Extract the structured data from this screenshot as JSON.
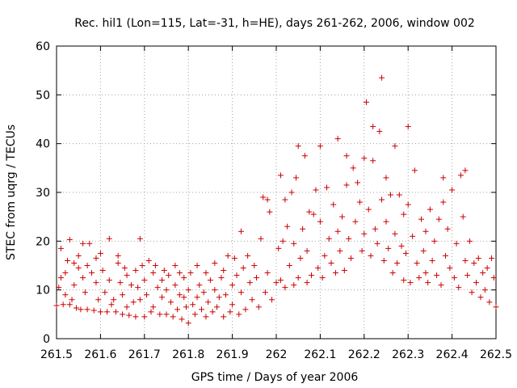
{
  "chart_data": {
    "type": "scatter",
    "title": "Rec. hil1 (Lon=115, Lat=-31, h=HE), days 261-262, 2006, window 002",
    "xlabel": "GPS time / Days of year 2006",
    "ylabel": "STEC from uqrg / TECUs",
    "xlim": [
      261.5,
      262.5
    ],
    "ylim": [
      0,
      60
    ],
    "x_ticks": [
      "261.5",
      "261.6",
      "261.7",
      "261.8",
      "261.9",
      "262",
      "262.1",
      "262.2",
      "262.3",
      "262.4",
      "262.5"
    ],
    "y_ticks": [
      "0",
      "10",
      "20",
      "30",
      "40",
      "50",
      "60"
    ],
    "grid": true,
    "marker": "plus",
    "marker_color": "#cc0000",
    "series": [
      {
        "name": "STEC",
        "points": [
          [
            261.5,
            6.8
          ],
          [
            261.505,
            10.5
          ],
          [
            261.51,
            12.5
          ],
          [
            261.51,
            18.5
          ],
          [
            261.515,
            7.0
          ],
          [
            261.52,
            9.0
          ],
          [
            261.52,
            13.5
          ],
          [
            261.525,
            16.0
          ],
          [
            261.53,
            20.3
          ],
          [
            261.53,
            7.0
          ],
          [
            261.535,
            8.0
          ],
          [
            261.54,
            11.0
          ],
          [
            261.54,
            15.5
          ],
          [
            261.545,
            6.3
          ],
          [
            261.55,
            14.5
          ],
          [
            261.55,
            17.0
          ],
          [
            261.555,
            6.0
          ],
          [
            261.56,
            19.5
          ],
          [
            261.56,
            12.5
          ],
          [
            261.565,
            9.5
          ],
          [
            261.57,
            6.0
          ],
          [
            261.57,
            15.0
          ],
          [
            261.575,
            19.5
          ],
          [
            261.58,
            13.5
          ],
          [
            261.585,
            5.8
          ],
          [
            261.59,
            11.5
          ],
          [
            261.59,
            16.5
          ],
          [
            261.595,
            8.0
          ],
          [
            261.6,
            5.5
          ],
          [
            261.6,
            17.5
          ],
          [
            261.605,
            14.0
          ],
          [
            261.61,
            9.5
          ],
          [
            261.615,
            5.5
          ],
          [
            261.62,
            20.5
          ],
          [
            261.62,
            12.0
          ],
          [
            261.625,
            7.0
          ],
          [
            261.63,
            8.0
          ],
          [
            261.635,
            5.5
          ],
          [
            261.64,
            15.5
          ],
          [
            261.64,
            17.0
          ],
          [
            261.645,
            11.5
          ],
          [
            261.65,
            5.0
          ],
          [
            261.65,
            9.0
          ],
          [
            261.655,
            14.5
          ],
          [
            261.66,
            6.5
          ],
          [
            261.66,
            13.0
          ],
          [
            261.665,
            4.8
          ],
          [
            261.67,
            11.0
          ],
          [
            261.675,
            7.5
          ],
          [
            261.68,
            14.0
          ],
          [
            261.68,
            4.5
          ],
          [
            261.685,
            10.5
          ],
          [
            261.69,
            8.0
          ],
          [
            261.69,
            20.5
          ],
          [
            261.695,
            15.0
          ],
          [
            261.7,
            4.5
          ],
          [
            261.7,
            12.0
          ],
          [
            261.705,
            9.0
          ],
          [
            261.71,
            16.0
          ],
          [
            261.715,
            5.5
          ],
          [
            261.72,
            13.5
          ],
          [
            261.72,
            6.5
          ],
          [
            261.725,
            15.0
          ],
          [
            261.73,
            10.5
          ],
          [
            261.735,
            5.0
          ],
          [
            261.74,
            12.0
          ],
          [
            261.74,
            8.5
          ],
          [
            261.745,
            14.0
          ],
          [
            261.75,
            5.0
          ],
          [
            261.75,
            10.0
          ],
          [
            261.755,
            13.0
          ],
          [
            261.76,
            7.5
          ],
          [
            261.765,
            4.5
          ],
          [
            261.77,
            11.0
          ],
          [
            261.77,
            15.0
          ],
          [
            261.775,
            6.0
          ],
          [
            261.78,
            13.5
          ],
          [
            261.78,
            9.0
          ],
          [
            261.785,
            4.0
          ],
          [
            261.79,
            12.5
          ],
          [
            261.79,
            8.5
          ],
          [
            261.795,
            6.5
          ],
          [
            261.8,
            3.2
          ],
          [
            261.8,
            10.0
          ],
          [
            261.805,
            13.5
          ],
          [
            261.81,
            7.0
          ],
          [
            261.815,
            5.0
          ],
          [
            261.82,
            8.5
          ],
          [
            261.82,
            15.0
          ],
          [
            261.825,
            11.0
          ],
          [
            261.83,
            6.0
          ],
          [
            261.835,
            9.5
          ],
          [
            261.84,
            4.5
          ],
          [
            261.84,
            13.5
          ],
          [
            261.845,
            7.5
          ],
          [
            261.85,
            12.0
          ],
          [
            261.855,
            5.5
          ],
          [
            261.86,
            10.0
          ],
          [
            261.86,
            15.5
          ],
          [
            261.865,
            6.5
          ],
          [
            261.87,
            8.5
          ],
          [
            261.875,
            12.5
          ],
          [
            261.88,
            4.5
          ],
          [
            261.88,
            14.0
          ],
          [
            261.885,
            9.0
          ],
          [
            261.89,
            17.0
          ],
          [
            261.895,
            5.5
          ],
          [
            261.9,
            11.0
          ],
          [
            261.9,
            7.0
          ],
          [
            261.905,
            16.5
          ],
          [
            261.91,
            13.0
          ],
          [
            261.915,
            5.0
          ],
          [
            261.92,
            22.0
          ],
          [
            261.92,
            9.5
          ],
          [
            261.925,
            14.5
          ],
          [
            261.93,
            6.0
          ],
          [
            261.935,
            17.0
          ],
          [
            261.94,
            11.5
          ],
          [
            261.945,
            8.0
          ],
          [
            261.95,
            15.0
          ],
          [
            261.955,
            12.5
          ],
          [
            261.96,
            6.5
          ],
          [
            261.965,
            20.5
          ],
          [
            261.97,
            29.0
          ],
          [
            261.975,
            9.5
          ],
          [
            261.98,
            28.5
          ],
          [
            261.98,
            13.5
          ],
          [
            261.985,
            26.0
          ],
          [
            261.99,
            8.0
          ],
          [
            262.0,
            11.5
          ],
          [
            262.005,
            18.5
          ],
          [
            262.01,
            33.5
          ],
          [
            262.01,
            12.0
          ],
          [
            262.015,
            20.0
          ],
          [
            262.02,
            28.5
          ],
          [
            262.02,
            10.5
          ],
          [
            262.025,
            23.0
          ],
          [
            262.03,
            15.0
          ],
          [
            262.035,
            30.0
          ],
          [
            262.04,
            11.0
          ],
          [
            262.04,
            19.5
          ],
          [
            262.045,
            33.0
          ],
          [
            262.05,
            12.5
          ],
          [
            262.05,
            39.5
          ],
          [
            262.055,
            16.5
          ],
          [
            262.06,
            22.5
          ],
          [
            262.065,
            37.5
          ],
          [
            262.07,
            11.5
          ],
          [
            262.07,
            18.0
          ],
          [
            262.075,
            26.0
          ],
          [
            262.08,
            13.0
          ],
          [
            262.085,
            25.5
          ],
          [
            262.09,
            30.5
          ],
          [
            262.095,
            14.5
          ],
          [
            262.1,
            24.0
          ],
          [
            262.1,
            39.5
          ],
          [
            262.105,
            12.5
          ],
          [
            262.11,
            17.0
          ],
          [
            262.115,
            31.0
          ],
          [
            262.12,
            20.5
          ],
          [
            262.125,
            15.5
          ],
          [
            262.13,
            27.5
          ],
          [
            262.135,
            13.5
          ],
          [
            262.14,
            22.0
          ],
          [
            262.14,
            41.0
          ],
          [
            262.145,
            18.0
          ],
          [
            262.15,
            25.0
          ],
          [
            262.155,
            14.0
          ],
          [
            262.16,
            31.5
          ],
          [
            262.16,
            37.5
          ],
          [
            262.165,
            20.5
          ],
          [
            262.17,
            16.5
          ],
          [
            262.175,
            35.0
          ],
          [
            262.18,
            24.0
          ],
          [
            262.185,
            32.0
          ],
          [
            262.19,
            28.0
          ],
          [
            262.195,
            18.0
          ],
          [
            262.2,
            37.0
          ],
          [
            262.2,
            21.5
          ],
          [
            262.205,
            48.5
          ],
          [
            262.21,
            26.5
          ],
          [
            262.215,
            17.0
          ],
          [
            262.22,
            43.5
          ],
          [
            262.22,
            36.5
          ],
          [
            262.225,
            22.5
          ],
          [
            262.23,
            19.5
          ],
          [
            262.235,
            42.5
          ],
          [
            262.24,
            53.5
          ],
          [
            262.24,
            28.5
          ],
          [
            262.245,
            16.0
          ],
          [
            262.25,
            33.0
          ],
          [
            262.25,
            24.0
          ],
          [
            262.255,
            18.5
          ],
          [
            262.26,
            29.5
          ],
          [
            262.265,
            13.5
          ],
          [
            262.27,
            39.5
          ],
          [
            262.27,
            21.5
          ],
          [
            262.275,
            15.5
          ],
          [
            262.28,
            29.5
          ],
          [
            262.285,
            19.0
          ],
          [
            262.29,
            12.0
          ],
          [
            262.29,
            25.5
          ],
          [
            262.295,
            17.5
          ],
          [
            262.3,
            43.5
          ],
          [
            262.3,
            27.5
          ],
          [
            262.305,
            11.5
          ],
          [
            262.31,
            21.0
          ],
          [
            262.315,
            34.5
          ],
          [
            262.32,
            15.5
          ],
          [
            262.325,
            12.5
          ],
          [
            262.33,
            24.5
          ],
          [
            262.335,
            18.0
          ],
          [
            262.34,
            13.5
          ],
          [
            262.34,
            22.0
          ],
          [
            262.345,
            11.5
          ],
          [
            262.35,
            26.5
          ],
          [
            262.355,
            16.0
          ],
          [
            262.36,
            20.0
          ],
          [
            262.365,
            13.0
          ],
          [
            262.37,
            24.5
          ],
          [
            262.375,
            11.0
          ],
          [
            262.38,
            33.0
          ],
          [
            262.38,
            28.0
          ],
          [
            262.385,
            17.0
          ],
          [
            262.39,
            22.5
          ],
          [
            262.395,
            14.5
          ],
          [
            262.4,
            30.5
          ],
          [
            262.405,
            12.5
          ],
          [
            262.41,
            19.5
          ],
          [
            262.415,
            10.5
          ],
          [
            262.42,
            33.5
          ],
          [
            262.425,
            25.0
          ],
          [
            262.43,
            34.5
          ],
          [
            262.43,
            16.0
          ],
          [
            262.435,
            13.0
          ],
          [
            262.44,
            20.0
          ],
          [
            262.445,
            9.5
          ],
          [
            262.45,
            15.5
          ],
          [
            262.455,
            11.5
          ],
          [
            262.46,
            16.5
          ],
          [
            262.465,
            8.5
          ],
          [
            262.47,
            13.5
          ],
          [
            262.475,
            10.0
          ],
          [
            262.48,
            14.5
          ],
          [
            262.485,
            7.5
          ],
          [
            262.49,
            16.5
          ],
          [
            262.495,
            12.5
          ],
          [
            262.5,
            6.5
          ]
        ]
      }
    ]
  }
}
